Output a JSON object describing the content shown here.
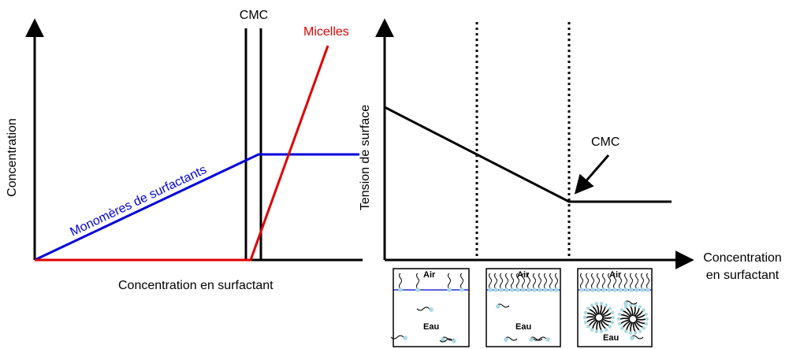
{
  "left_graph": {
    "ylabel": "Concentration",
    "xlabel": "Concentration en surfactant",
    "cmc_label": "CMC",
    "micelles_label": "Micelles",
    "monomers_label": "Monomères de  surfactants"
  },
  "right_graph": {
    "ylabel": "Tension de surface",
    "xlabel_line1": "Concentration",
    "xlabel_line2": "en surfactant",
    "cmc_label": "CMC"
  },
  "panels": [
    {
      "air": "Air",
      "eau": "Eau"
    },
    {
      "air": "Air",
      "eau": "Eau"
    },
    {
      "air": "Air",
      "eau": "Eau"
    }
  ],
  "colors": {
    "axis": "#000000",
    "monomers": "#0000dd",
    "micelles": "#e00000",
    "heads": "#a8d8e4"
  }
}
